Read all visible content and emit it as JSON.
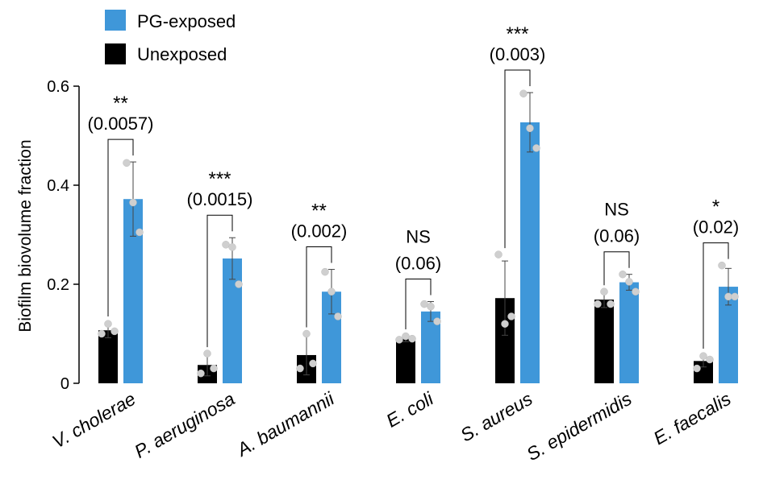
{
  "chart_data": {
    "type": "bar",
    "ylabel": "Biofilm biovolume fraction",
    "xlabel": "",
    "ylim": [
      0,
      0.6
    ],
    "yticks": [
      {
        "value": 0,
        "label": "0"
      },
      {
        "value": 0.2,
        "label": "0.2"
      },
      {
        "value": 0.4,
        "label": "0.4"
      },
      {
        "value": 0.6,
        "label": "0.6"
      }
    ],
    "grid": false,
    "legend_position": "top-left",
    "categories": [
      "V. cholerae",
      "P. aeruginosa",
      "A. baumannii",
      "E. coli",
      "S. aureus",
      "S. epidermidis",
      "E. faecalis"
    ],
    "series": [
      {
        "name": "Unexposed",
        "color": "#000000",
        "values": [
          0.107,
          0.037,
          0.057,
          0.09,
          0.172,
          0.169,
          0.045
        ],
        "error": [
          0.015,
          0.022,
          0.04,
          0.006,
          0.075,
          0.016,
          0.012
        ],
        "points": [
          [
            0.1,
            0.12,
            0.105
          ],
          [
            0.02,
            0.06,
            0.03
          ],
          [
            0.03,
            0.1,
            0.04
          ],
          [
            0.088,
            0.095,
            0.09
          ],
          [
            0.26,
            0.12,
            0.135
          ],
          [
            0.16,
            0.185,
            0.16
          ],
          [
            0.03,
            0.055,
            0.048
          ]
        ]
      },
      {
        "name": "PG-exposed",
        "color": "#3F97D9",
        "values": [
          0.372,
          0.252,
          0.185,
          0.145,
          0.527,
          0.204,
          0.195
        ],
        "error": [
          0.075,
          0.042,
          0.045,
          0.02,
          0.06,
          0.016,
          0.037
        ],
        "points": [
          [
            0.445,
            0.365,
            0.305
          ],
          [
            0.28,
            0.275,
            0.2
          ],
          [
            0.225,
            0.185,
            0.135
          ],
          [
            0.16,
            0.155,
            0.125
          ],
          [
            0.585,
            0.515,
            0.475
          ],
          [
            0.22,
            0.205,
            0.185
          ],
          [
            0.238,
            0.175,
            0.175
          ]
        ]
      }
    ],
    "annotations": [
      {
        "stars": "**",
        "p": "(0.0057)"
      },
      {
        "stars": "***",
        "p": "(0.0015)"
      },
      {
        "stars": "**",
        "p": "(0.002)"
      },
      {
        "stars": "",
        "p": "NS\n(0.06)"
      },
      {
        "stars": "***",
        "p": "(0.003)"
      },
      {
        "stars": "",
        "p": "NS\n(0.06)"
      },
      {
        "stars": "*",
        "p": "(0.02)"
      }
    ]
  },
  "legend": [
    {
      "label": "PG-exposed",
      "color": "#3F97D9"
    },
    {
      "label": "Unexposed",
      "color": "#000000"
    }
  ]
}
